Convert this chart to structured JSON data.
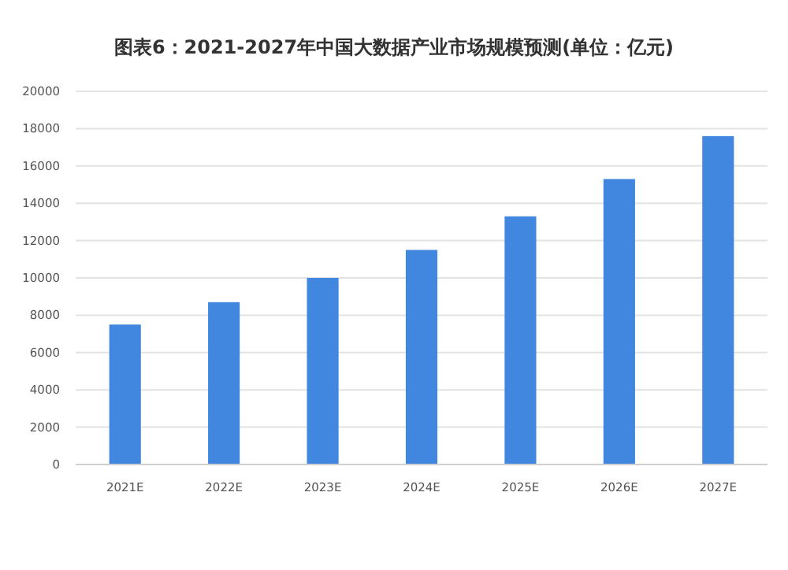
{
  "chart_data": {
    "type": "bar",
    "title": "图表6：2021-2027年中国大数据产业市场规模预测(单位：亿元)",
    "categories": [
      "2021E",
      "2022E",
      "2023E",
      "2024E",
      "2025E",
      "2026E",
      "2027E"
    ],
    "values": [
      7500,
      8700,
      10000,
      11500,
      13300,
      15300,
      17600
    ],
    "color": "#4187e0",
    "ylim": [
      0,
      20000
    ],
    "yticks": [
      0,
      2000,
      4000,
      6000,
      8000,
      10000,
      12000,
      14000,
      16000,
      18000,
      20000
    ],
    "grid": "y"
  }
}
